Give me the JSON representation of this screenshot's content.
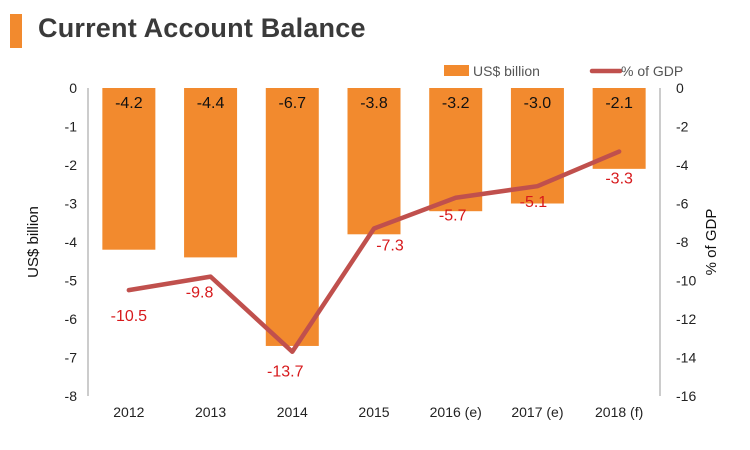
{
  "page": {
    "title": "Current Account Balance"
  },
  "colors": {
    "bar": "#f28a2e",
    "line": "#c0504d",
    "line_label": "#d7191c",
    "accent": "#f28a2e"
  },
  "chart_data": {
    "type": "bar",
    "title": "Current Account Balance",
    "categories": [
      "2012",
      "2013",
      "2014",
      "2015",
      "2016 (e)",
      "2017 (e)",
      "2018 (f)"
    ],
    "series": [
      {
        "name": "US$ billion",
        "type": "bar",
        "axis": "left",
        "values": [
          -4.2,
          -4.4,
          -6.7,
          -3.8,
          -3.2,
          -3.0,
          -2.1
        ],
        "labels": [
          "-4.2",
          "-4.4",
          "-6.7",
          "-3.8",
          "-3.2",
          "-3.0",
          "-2.1"
        ]
      },
      {
        "name": "% of GDP",
        "type": "line",
        "axis": "right",
        "values": [
          -10.5,
          -9.8,
          -13.7,
          -7.3,
          -5.7,
          -5.1,
          -3.3
        ],
        "labels": [
          "-10.5",
          "-9.8",
          "-13.7",
          "-7.3",
          "-5.7",
          "-5.1",
          "-3.3"
        ]
      }
    ],
    "ylabel": "US$ billion",
    "y2label": "% of GDP",
    "ylim": [
      -8,
      0
    ],
    "y2lim": [
      -16,
      0
    ],
    "yticks": [
      0,
      -1,
      -2,
      -3,
      -4,
      -5,
      -6,
      -7,
      -8
    ],
    "y2ticks": [
      0,
      -2,
      -4,
      -6,
      -8,
      -10,
      -12,
      -14,
      -16
    ],
    "grid": false,
    "legend_position": "top-right"
  }
}
